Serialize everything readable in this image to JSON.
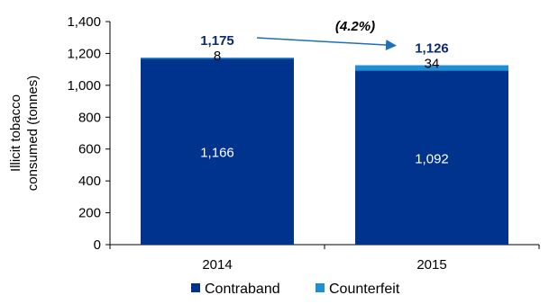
{
  "chart_data": {
    "type": "bar",
    "stacked": true,
    "categories": [
      "2014",
      "2015"
    ],
    "series": [
      {
        "name": "Contraband",
        "values": [
          1166,
          1092
        ],
        "labels": [
          "1,166",
          "1,092"
        ],
        "color": "#00338d"
      },
      {
        "name": "Counterfeit",
        "values": [
          8,
          34
        ],
        "labels": [
          "8",
          "34"
        ],
        "color": "#1e8fd5"
      }
    ],
    "totals": [
      "1,175",
      "1,126"
    ],
    "annotation": "(4.2%)",
    "ylabel": "Illicit tobacco consumed (tonnes)",
    "ylabel_lines": [
      "Illicit tobacco",
      "consumed (tonnes)"
    ],
    "xlabel": "",
    "ylim": [
      0,
      1400
    ],
    "yticks": [
      0,
      200,
      400,
      600,
      800,
      1000,
      1200,
      1400
    ],
    "ytick_labels": [
      "0",
      "200",
      "400",
      "600",
      "800",
      "1,000",
      "1,200",
      "1,400"
    ],
    "grid": false,
    "legend_position": "bottom"
  }
}
